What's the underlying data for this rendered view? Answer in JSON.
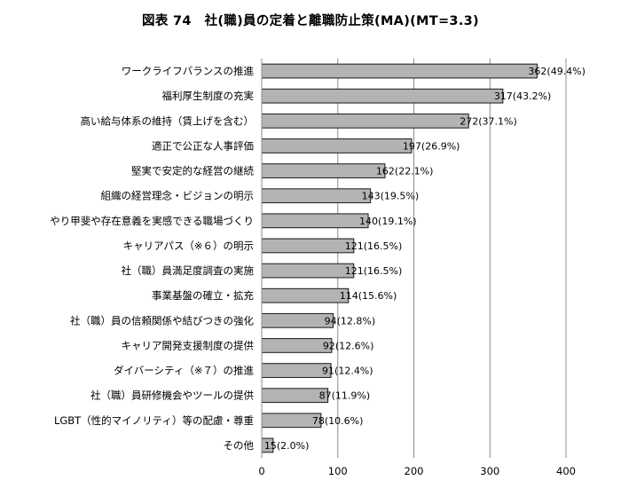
{
  "title": "図表 74　社(職)員の定着と離職防止策(MA)(MT=3.3)",
  "chart_data": {
    "type": "bar",
    "orientation": "horizontal",
    "title": "図表 74　社(職)員の定着と離職防止策(MA)(MT=3.3)",
    "xlabel": "",
    "ylabel": "",
    "xlim": [
      0,
      400
    ],
    "xticks": [
      0,
      100,
      200,
      300,
      400
    ],
    "grid": true,
    "bar_color": "#b3b3b3",
    "bar_edge_color": "#1a1a1a",
    "categories": [
      "ワークライフバランスの推進",
      "福利厚生制度の充実",
      "高い給与体系の維持（賃上げを含む）",
      "適正で公正な人事評価",
      "堅実で安定的な経営の継続",
      "組織の経営理念・ビジョンの明示",
      "やり甲斐や存在意義を実感できる職場づくり",
      "キャリアパス（※６）の明示",
      "社（職）員満足度調査の実施",
      "事業基盤の確立・拡充",
      "社（職）員の信頼関係や結びつきの強化",
      "キャリア開発支援制度の提供",
      "ダイバーシティ（※７）の推進",
      "社（職）員研修機会やツールの提供",
      "LGBT（性的マイノリティ）等の配慮・尊重",
      "その他"
    ],
    "values": [
      362,
      317,
      272,
      197,
      162,
      143,
      140,
      121,
      121,
      114,
      94,
      92,
      91,
      87,
      78,
      15
    ],
    "data_labels": [
      "362(49.4%)",
      "317(43.2%)",
      "272(37.1%)",
      "197(26.9%)",
      "162(22.1%)",
      "143(19.5%)",
      "140(19.1%)",
      "121(16.5%)",
      "121(16.5%)",
      "114(15.6%)",
      "94(12.8%)",
      "92(12.6%)",
      "91(12.4%)",
      "87(11.9%)",
      "78(10.6%)",
      "15(2.0%)"
    ]
  }
}
